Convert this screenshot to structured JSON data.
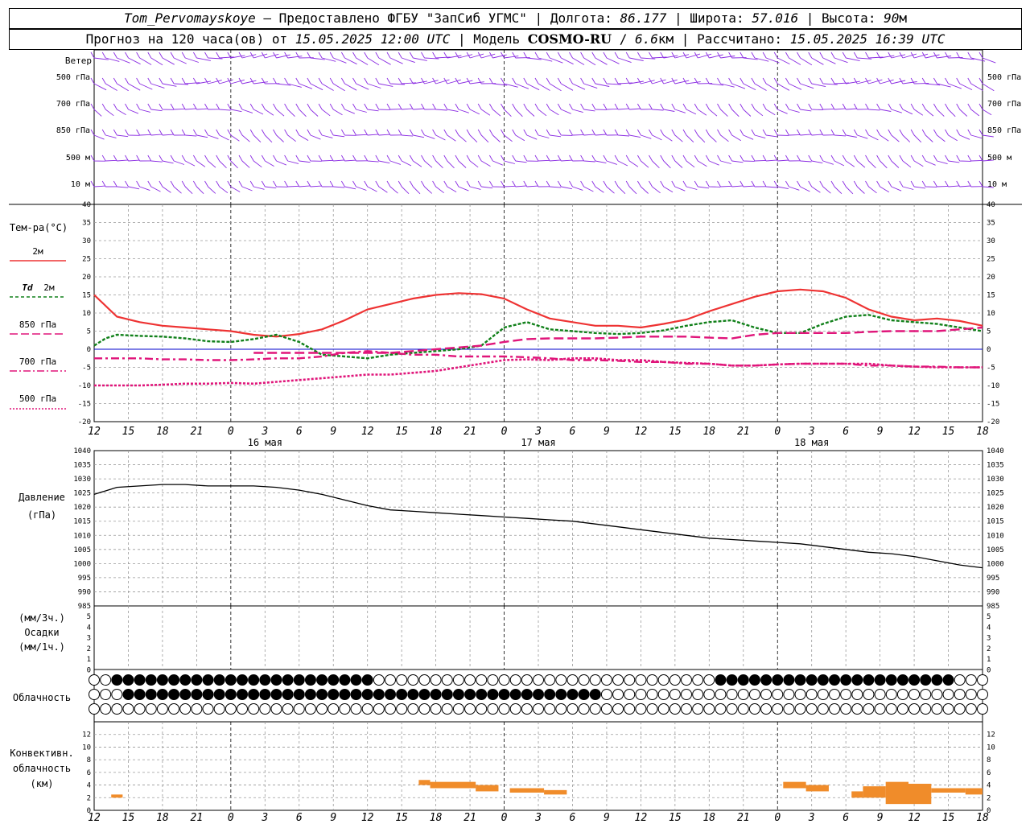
{
  "header": {
    "station": "Tom_Pervomayskoye",
    "provided_by": "– Предоставлено ФГБУ \"ЗапСиб УГМС\"",
    "lon_label": "Долгота:",
    "lon": "86.177",
    "lat_label": "Широта:",
    "lat": "57.016",
    "alt_label": "Высота:",
    "alt": "90",
    "alt_unit": "м",
    "forecast_label": "Прогноз на 120 часа(ов) от",
    "forecast_time": "15.05.2025 12:00 UTC",
    "model_label": "Модель",
    "model": "COSMO-RU",
    "resolution": "6.6",
    "resolution_unit": "км",
    "calc_label": "Рассчитано:",
    "calc_time": "15.05.2025 16:39 UTC"
  },
  "colors": {
    "t2m": "#ee3333",
    "td2m": "#11801a",
    "t850": "#e0157a",
    "t700": "#e0157a",
    "t500": "#e0157a",
    "wind": "#8a2be2",
    "pressure": "#000000",
    "convective": "#f08c2a",
    "zero_line": "#0000cc"
  },
  "panels": {
    "wind": {
      "title": "Ветер",
      "levels": [
        "500 гПа",
        "700 гПа",
        "850 гПа",
        "500 м",
        "10  м"
      ]
    },
    "temperature": {
      "title": "Тем-ра(°С)",
      "legend": [
        {
          "label": "2м"
        },
        {
          "label_td": "Td",
          "label": "2м"
        },
        {
          "label": "850 гПа"
        },
        {
          "label": "700 гПа"
        },
        {
          "label": "500 гПа"
        }
      ]
    },
    "pressure": {
      "title": "Давление",
      "unit": "(гПа)"
    },
    "precip": {
      "unit_3h": "(мм/3ч.)",
      "title": "Осадки",
      "unit_1h": "(мм/1ч.)"
    },
    "cloud": {
      "title": "Облачность"
    },
    "convective": {
      "title1": "Конвективн.",
      "title2": "облачность",
      "unit": "(км)"
    }
  },
  "time_axis": {
    "hour_labels": [
      "12",
      "15",
      "18",
      "21",
      "0",
      "3",
      "6",
      "9",
      "12",
      "15",
      "18",
      "21",
      "0",
      "3",
      "6",
      "9",
      "12",
      "15",
      "18",
      "21",
      "0",
      "3",
      "6",
      "9",
      "12",
      "15",
      "18"
    ],
    "day_labels": [
      "16 мая",
      "17 мая",
      "18 мая"
    ]
  },
  "chart_data": {
    "type": "line",
    "x_unit": "hours from 15.05.2025 12:00 UTC",
    "x_range": [
      0,
      78
    ],
    "temperature": {
      "ylim": [
        -20,
        40
      ],
      "ticks": [
        "40",
        "35",
        "30",
        "25",
        "20",
        "15",
        "10",
        "5",
        "0",
        "-5",
        "-10",
        "-15",
        "-20"
      ],
      "series": [
        {
          "key": "t2m",
          "x": [
            0,
            2,
            4,
            6,
            8,
            10,
            12,
            14,
            16,
            18,
            20,
            22,
            24,
            26,
            28,
            30,
            32,
            34,
            36,
            38,
            40,
            42,
            44,
            46,
            48,
            50,
            52,
            54,
            56,
            58,
            60,
            62,
            64,
            66,
            68,
            70,
            72,
            74,
            76,
            78
          ],
          "values": [
            15,
            9,
            7.5,
            6.5,
            6,
            5.5,
            5,
            4,
            3.5,
            4.2,
            5.5,
            8,
            11,
            12.5,
            14,
            15,
            15.5,
            15.2,
            14,
            11,
            8.5,
            7.5,
            6.5,
            6.5,
            6,
            7,
            8.2,
            10.5,
            12.5,
            14.5,
            16,
            16.5,
            16,
            14.2,
            11,
            9,
            8,
            8.5,
            7.8,
            6.5
          ]
        },
        {
          "key": "td2m",
          "x": [
            0,
            1,
            2,
            4,
            6,
            8,
            10,
            12,
            14,
            16,
            18,
            20,
            22,
            24,
            26,
            28,
            30,
            32,
            34,
            36,
            38,
            40,
            42,
            44,
            46,
            48,
            50,
            52,
            54,
            56,
            58,
            60,
            62,
            64,
            66,
            68,
            70,
            72,
            74,
            76,
            78
          ],
          "values": [
            1,
            3,
            4,
            3.7,
            3.5,
            3,
            2.2,
            2,
            2.8,
            4,
            2,
            -1.5,
            -2,
            -2.5,
            -1.5,
            -1,
            -0.5,
            0,
            1,
            6,
            7.5,
            5.5,
            5,
            4.5,
            4.2,
            4.5,
            5.2,
            6.5,
            7.5,
            8,
            6,
            4.5,
            4.5,
            7,
            9,
            9.5,
            8,
            7.5,
            7,
            6,
            5
          ]
        },
        {
          "key": "t850",
          "x": [
            14,
            16,
            18,
            20,
            22,
            24,
            26,
            28,
            30,
            32,
            34,
            36,
            38,
            40,
            42,
            44,
            46,
            48,
            50,
            52,
            54,
            56,
            58,
            60,
            62,
            64,
            66,
            68,
            70,
            72,
            74,
            76,
            78
          ],
          "values": [
            -1,
            -1,
            -1,
            -1,
            -1,
            -1,
            -1,
            -0.5,
            0,
            0.5,
            1,
            2,
            2.8,
            3,
            3,
            3,
            3.2,
            3.5,
            3.5,
            3.5,
            3.2,
            3,
            4,
            4.5,
            4.5,
            4.5,
            4.5,
            4.8,
            5,
            5,
            5,
            5.5,
            6
          ]
        },
        {
          "key": "t700",
          "x": [
            0,
            2,
            4,
            6,
            8,
            10,
            12,
            14,
            16,
            18,
            20,
            22,
            24,
            26,
            28,
            30,
            32,
            34,
            36,
            38,
            40,
            42,
            44,
            46,
            48,
            50,
            52,
            54,
            56,
            58,
            60,
            62,
            64,
            66,
            68,
            70,
            72,
            74,
            76,
            78
          ],
          "values": [
            -2.5,
            -2.5,
            -2.5,
            -2.8,
            -2.8,
            -3,
            -3,
            -2.8,
            -2.5,
            -2.5,
            -2,
            -1,
            -0.5,
            -1,
            -1.5,
            -1.5,
            -2,
            -2,
            -2,
            -2.2,
            -2.5,
            -3,
            -3,
            -3.2,
            -3.5,
            -3.5,
            -4,
            -4,
            -4.5,
            -4.5,
            -4.2,
            -4,
            -4,
            -4,
            -4.5,
            -4.5,
            -4.8,
            -4.8,
            -5,
            -5
          ]
        },
        {
          "key": "t500",
          "x": [
            0,
            2,
            4,
            6,
            8,
            10,
            12,
            14,
            16,
            18,
            20,
            22,
            24,
            26,
            28,
            30,
            32,
            34,
            36,
            38,
            40,
            42,
            44,
            46,
            48,
            50,
            52,
            54,
            56,
            58,
            60,
            62,
            64,
            66,
            68,
            70,
            72,
            74,
            76,
            78
          ],
          "values": [
            -10,
            -10,
            -10,
            -9.8,
            -9.5,
            -9.5,
            -9.3,
            -9.5,
            -9,
            -8.5,
            -8,
            -7.5,
            -7,
            -7,
            -6.5,
            -6,
            -5,
            -4,
            -3,
            -2.8,
            -3,
            -2.5,
            -2.5,
            -3,
            -3,
            -3.5,
            -3.8,
            -4,
            -4.5,
            -4.5,
            -4.2,
            -4,
            -4,
            -4,
            -4,
            -4.5,
            -4.8,
            -5,
            -5,
            -5
          ]
        }
      ]
    },
    "pressure": {
      "ylim": [
        985,
        1040
      ],
      "ticks": [
        "1040",
        "1035",
        "1030",
        "1025",
        "1020",
        "1015",
        "1010",
        "1005",
        "1000",
        "995",
        "990",
        "985"
      ],
      "x": [
        0,
        2,
        4,
        6,
        8,
        10,
        12,
        14,
        16,
        18,
        20,
        22,
        24,
        26,
        28,
        30,
        32,
        34,
        36,
        38,
        40,
        42,
        44,
        46,
        48,
        50,
        52,
        54,
        56,
        58,
        60,
        62,
        64,
        66,
        68,
        70,
        72,
        74,
        76,
        78
      ],
      "values": [
        1024.5,
        1027,
        1027.5,
        1028,
        1028,
        1027.5,
        1027.5,
        1027.5,
        1027,
        1026,
        1024.5,
        1022.5,
        1020.5,
        1019,
        1018.5,
        1018,
        1017.5,
        1017,
        1016.5,
        1016,
        1015.5,
        1015,
        1014,
        1013,
        1012,
        1011,
        1010,
        1009,
        1008.5,
        1008,
        1007.5,
        1007,
        1006,
        1005,
        1004,
        1003.5,
        1002.5,
        1001,
        999.5,
        998.5
      ]
    },
    "precip": {
      "ticks": [
        "5",
        "4",
        "3",
        "2",
        "1",
        "0"
      ],
      "values": []
    },
    "convective": {
      "ylim": [
        0,
        14
      ],
      "ticks": [
        "12",
        "10",
        "8",
        "6",
        "4",
        "2",
        "0"
      ],
      "bars": [
        {
          "x0": 1.5,
          "x1": 2.5,
          "bottom": 2,
          "top": 2.5
        },
        {
          "x0": 28.5,
          "x1": 29.5,
          "bottom": 4,
          "top": 4.8
        },
        {
          "x0": 29.5,
          "x1": 33.5,
          "bottom": 3.5,
          "top": 4.5
        },
        {
          "x0": 33.5,
          "x1": 35.5,
          "bottom": 3,
          "top": 4
        },
        {
          "x0": 36.5,
          "x1": 39.5,
          "bottom": 2.8,
          "top": 3.5
        },
        {
          "x0": 39.5,
          "x1": 41.5,
          "bottom": 2.5,
          "top": 3.2
        },
        {
          "x0": 60.5,
          "x1": 62.5,
          "bottom": 3.5,
          "top": 4.5
        },
        {
          "x0": 62.5,
          "x1": 64.5,
          "bottom": 3,
          "top": 4
        },
        {
          "x0": 66.5,
          "x1": 67.5,
          "bottom": 2,
          "top": 3
        },
        {
          "x0": 67.5,
          "x1": 69.5,
          "bottom": 2,
          "top": 3.8
        },
        {
          "x0": 69.5,
          "x1": 71.5,
          "bottom": 1,
          "top": 4.5
        },
        {
          "x0": 71.5,
          "x1": 73.5,
          "bottom": 1,
          "top": 4.2
        },
        {
          "x0": 73.5,
          "x1": 76.5,
          "bottom": 2.8,
          "top": 3.5
        },
        {
          "x0": 76.5,
          "x1": 78,
          "bottom": 2.5,
          "top": 3.5
        }
      ]
    }
  }
}
